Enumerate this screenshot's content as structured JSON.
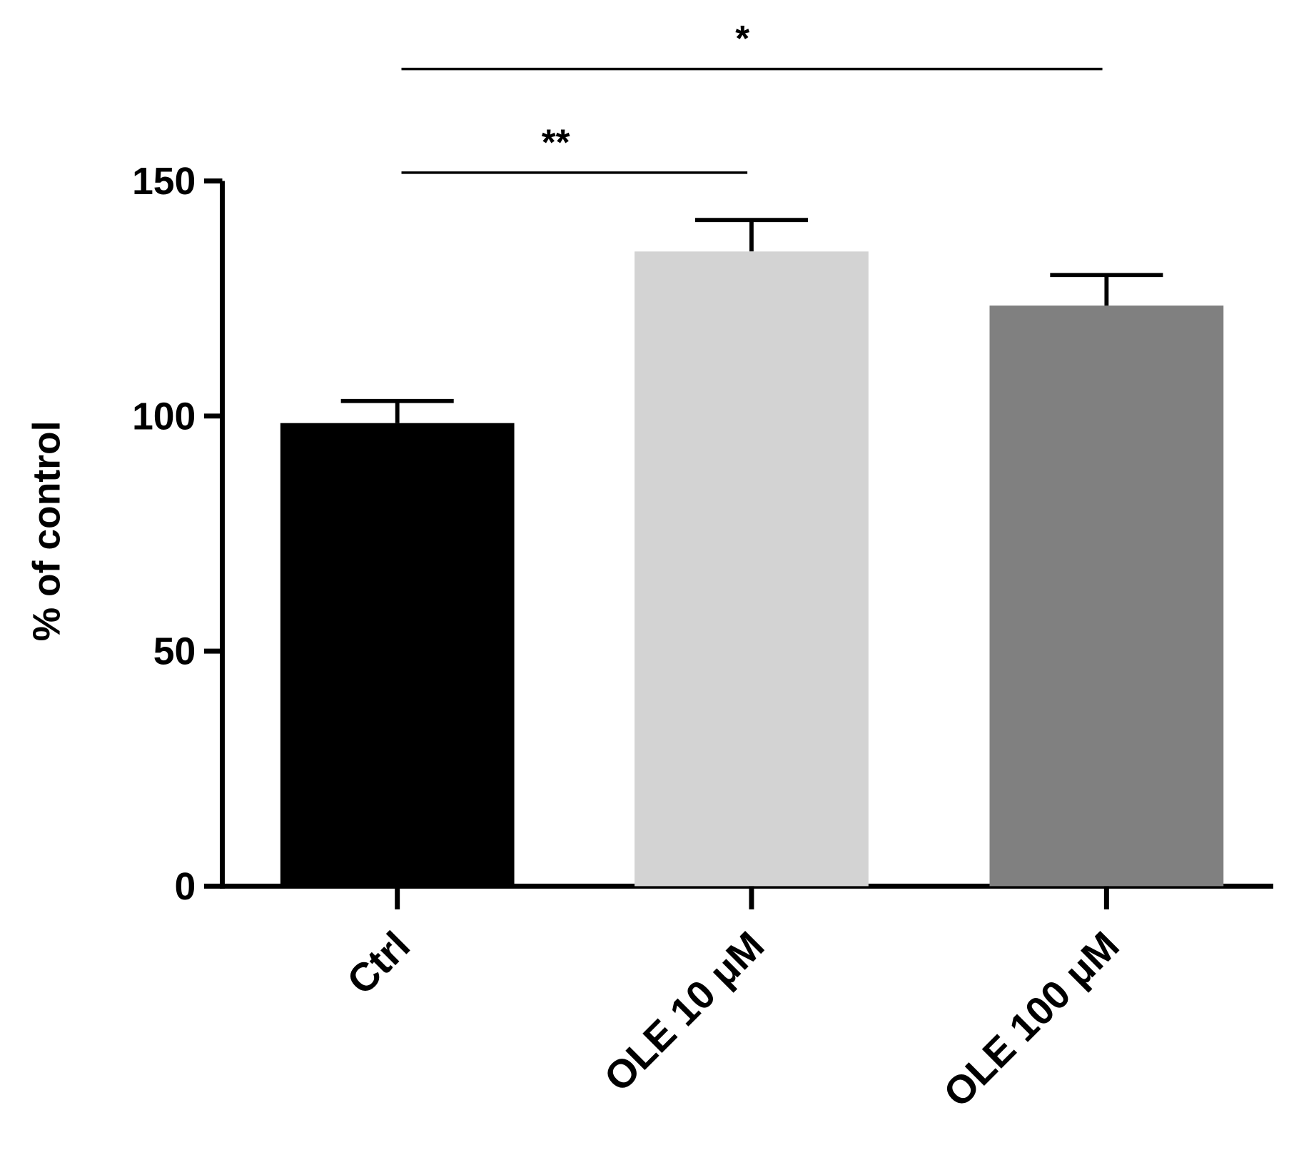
{
  "chart_data": {
    "type": "bar",
    "y_label": "% of control",
    "categories": [
      "Ctrl",
      "OLE 10 μM",
      "OLE 100 μM"
    ],
    "values": [
      98.5,
      135,
      123.5
    ],
    "errors": [
      4.7,
      6.7,
      6.5
    ],
    "colors": [
      "#000000",
      "#d3d3d3",
      "#808080"
    ],
    "ylim": [
      0,
      150
    ],
    "yticks": [
      0,
      50,
      100,
      150
    ],
    "annotations": [
      {
        "text": "**"
      },
      {
        "text": "*"
      }
    ]
  }
}
